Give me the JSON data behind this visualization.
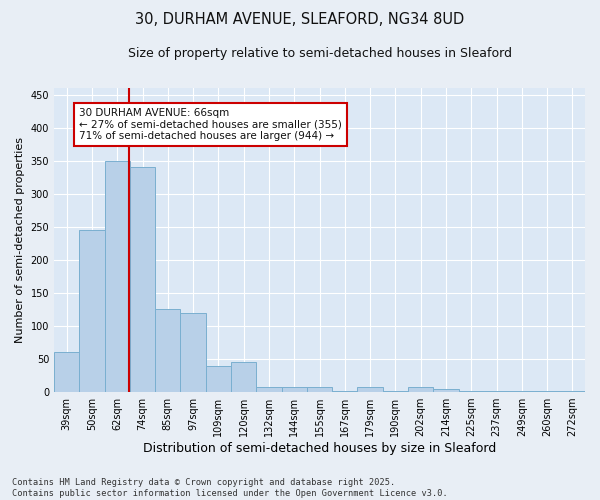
{
  "title_line1": "30, DURHAM AVENUE, SLEAFORD, NG34 8UD",
  "title_line2": "Size of property relative to semi-detached houses in Sleaford",
  "xlabel": "Distribution of semi-detached houses by size in Sleaford",
  "ylabel": "Number of semi-detached properties",
  "categories": [
    "39sqm",
    "50sqm",
    "62sqm",
    "74sqm",
    "85sqm",
    "97sqm",
    "109sqm",
    "120sqm",
    "132sqm",
    "144sqm",
    "155sqm",
    "167sqm",
    "179sqm",
    "190sqm",
    "202sqm",
    "214sqm",
    "225sqm",
    "237sqm",
    "249sqm",
    "260sqm",
    "272sqm"
  ],
  "values": [
    60,
    245,
    350,
    340,
    125,
    120,
    40,
    45,
    8,
    8,
    8,
    2,
    8,
    2,
    8,
    4,
    2,
    2,
    2,
    2,
    2
  ],
  "bar_color": "#b8d0e8",
  "bar_edge_color": "#7aafd0",
  "background_color": "#e8eef5",
  "plot_bg_color": "#dce8f5",
  "grid_color": "#ffffff",
  "vline_color": "#cc0000",
  "vline_x": 2.45,
  "annotation_text": "30 DURHAM AVENUE: 66sqm\n← 27% of semi-detached houses are smaller (355)\n71% of semi-detached houses are larger (944) →",
  "annotation_box_color": "#ffffff",
  "annotation_box_edge": "#cc0000",
  "footnote_line1": "Contains HM Land Registry data © Crown copyright and database right 2025.",
  "footnote_line2": "Contains public sector information licensed under the Open Government Licence v3.0.",
  "ylim": [
    0,
    460
  ],
  "yticks": [
    0,
    50,
    100,
    150,
    200,
    250,
    300,
    350,
    400,
    450
  ],
  "title1_fontsize": 10.5,
  "title2_fontsize": 9,
  "xlabel_fontsize": 9,
  "ylabel_fontsize": 8,
  "tick_fontsize": 7,
  "annot_fontsize": 7.5,
  "footnote_fontsize": 6.2
}
